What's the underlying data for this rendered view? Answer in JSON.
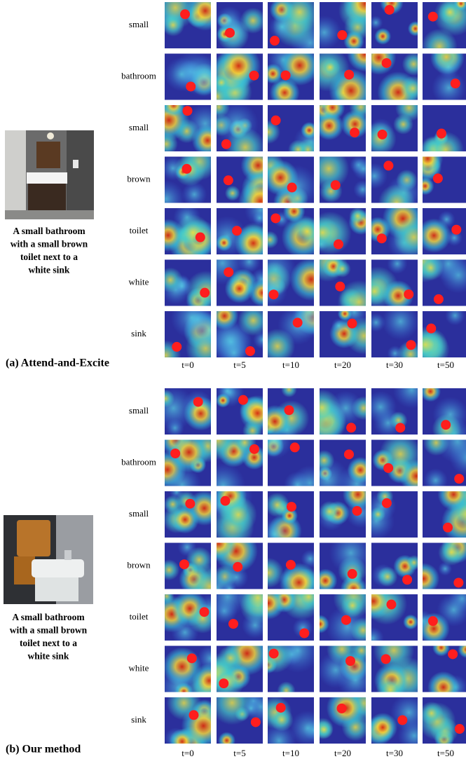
{
  "panels": [
    {
      "caption": "(a) Attend-and-Excite",
      "prompt_lines": [
        "A small bathroom",
        "with a small brown",
        "toilet next to a",
        "white sink"
      ],
      "row_labels": [
        "small",
        "bathroom",
        "small",
        "brown",
        "toilet",
        "white",
        "sink"
      ],
      "column_labels": [
        "t=0",
        "t=5",
        "t=10",
        "t=20",
        "t=30",
        "t=50"
      ]
    },
    {
      "caption": "(b) Our method",
      "prompt_lines": [
        "A small bathroom",
        "with a small brown",
        "toilet next to a",
        "white sink"
      ],
      "row_labels": [
        "small",
        "bathroom",
        "small",
        "brown",
        "toilet",
        "white",
        "sink"
      ],
      "column_labels": [
        "t=0",
        "t=5",
        "t=10",
        "t=20",
        "t=30",
        "t=50"
      ]
    }
  ]
}
